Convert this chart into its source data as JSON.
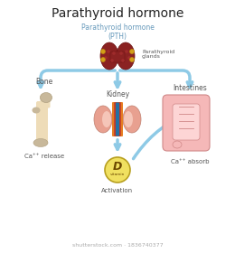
{
  "title": "Parathyroid hormone",
  "title_fontsize": 10,
  "bg_color": "#ffffff",
  "arrow_color": "#8ecae6",
  "arrow_linewidth": 2.5,
  "labels": {
    "pth_label": "Parathyroid hormone\n(PTH)",
    "glands_label": "Parathyroid\nglands",
    "bone_label": "Bone",
    "kidney_label": "Kidney",
    "intestines_label": "Intestines",
    "ca_release": "Ca⁺⁺ release",
    "activation": "Activation",
    "ca_absorb": "Ca⁺⁺ absorb"
  },
  "label_fontsize": 5.5,
  "small_fontsize": 5.0,
  "thyroid_color": "#8b2222",
  "thyroid_dark": "#6b1010",
  "thyroid_dot_color": "#d4a017",
  "bone_color": "#f2e2c0",
  "bone_joint_color": "#c8b89a",
  "bone_shaft_color": "#eedcb8",
  "kidney_pink": "#e8a090",
  "kidney_inner": "#f5c5b8",
  "kidney_red_vessel": "#c0392b",
  "kidney_blue_vessel": "#2471a3",
  "kidney_orange_vessel": "#e67e22",
  "intestine_color": "#f5b8b8",
  "intestine_edge_color": "#d08888",
  "vitd_fill": "#f0e060",
  "vitd_edge": "#b8a020",
  "vitd_text": "#6b4800",
  "shutterstock_text": "shutterstock.com · 1836740377",
  "shutterstock_fontsize": 4.5,
  "shutterstock_color": "#aaaaaa",
  "pth_label_color": "#6699bb",
  "organ_label_color": "#555555"
}
